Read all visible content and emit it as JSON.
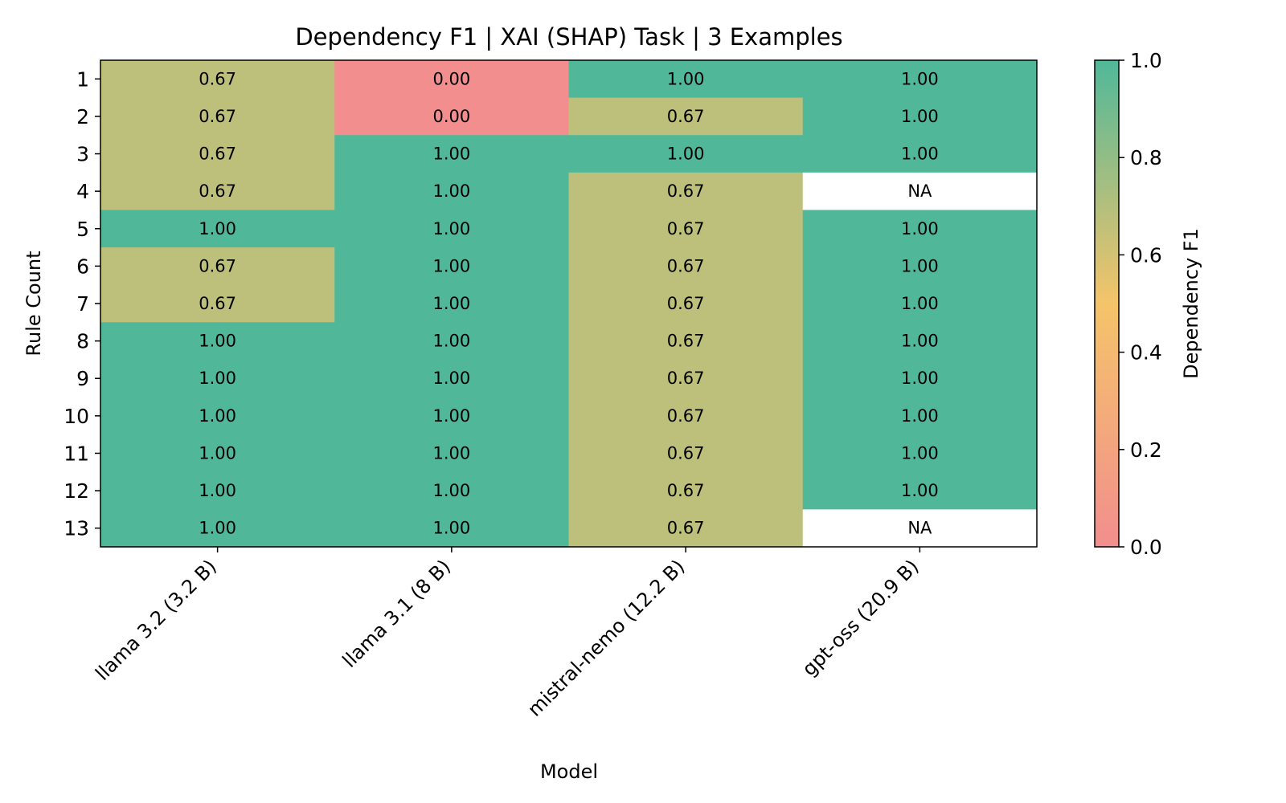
{
  "chart_data": {
    "type": "heatmap",
    "title": "Dependency F1 | XAI (SHAP) Task | 3 Examples",
    "xlabel": "Model",
    "ylabel": "Rule Count",
    "x_categories": [
      "llama 3.2 (3.2 B)",
      "llama 3.1 (8 B)",
      "mistral-nemo (12.2 B)",
      "gpt-oss (20.9 B)"
    ],
    "y_categories": [
      "1",
      "2",
      "3",
      "4",
      "5",
      "6",
      "7",
      "8",
      "9",
      "10",
      "11",
      "12",
      "13"
    ],
    "values": [
      [
        0.67,
        0.0,
        1.0,
        1.0
      ],
      [
        0.67,
        0.0,
        0.67,
        1.0
      ],
      [
        0.67,
        1.0,
        1.0,
        1.0
      ],
      [
        0.67,
        1.0,
        0.67,
        null
      ],
      [
        1.0,
        1.0,
        0.67,
        1.0
      ],
      [
        0.67,
        1.0,
        0.67,
        1.0
      ],
      [
        0.67,
        1.0,
        0.67,
        1.0
      ],
      [
        1.0,
        1.0,
        0.67,
        1.0
      ],
      [
        1.0,
        1.0,
        0.67,
        1.0
      ],
      [
        1.0,
        1.0,
        0.67,
        1.0
      ],
      [
        1.0,
        1.0,
        0.67,
        1.0
      ],
      [
        1.0,
        1.0,
        0.67,
        1.0
      ],
      [
        1.0,
        1.0,
        0.67,
        null
      ]
    ],
    "missing_label": "NA",
    "value_format_decimals": 2,
    "colorbar": {
      "label": "Dependency F1",
      "range": [
        0.0,
        1.0
      ],
      "ticks": [
        "0.0",
        "0.2",
        "0.4",
        "0.6",
        "0.8",
        "1.0"
      ],
      "colors": [
        "#f28e8e",
        "#f5c46a",
        "#50b899"
      ]
    }
  }
}
